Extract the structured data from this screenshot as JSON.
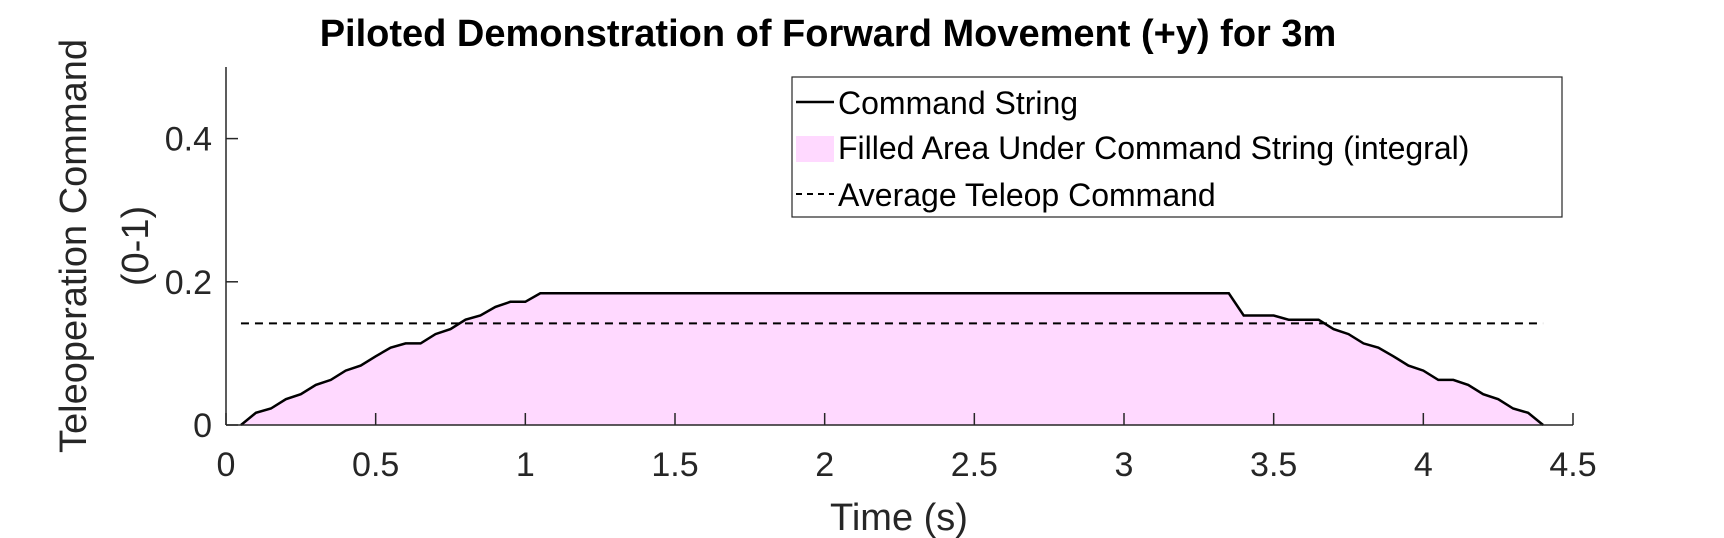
{
  "chart_data": {
    "type": "area",
    "title": "Piloted Demonstration of Forward Movement (+y) for 3m",
    "xlabel": "Time (s)",
    "ylabel_lines": [
      "Teleoperation Command",
      "(0-1)"
    ],
    "xlim": [
      0,
      4.5
    ],
    "ylim": [
      0,
      0.5
    ],
    "xticks": [
      0,
      0.5,
      1,
      1.5,
      2,
      2.5,
      3,
      3.5,
      4,
      4.5
    ],
    "xtick_labels": [
      "0",
      "0.5",
      "1",
      "1.5",
      "2",
      "2.5",
      "3",
      "3.5",
      "4",
      "4.5"
    ],
    "yticks": [
      0,
      0.2,
      0.4
    ],
    "ytick_labels": [
      "0",
      "0.2",
      "0.4"
    ],
    "grid": false,
    "legend_position": "top-right",
    "series": [
      {
        "name": "Command String",
        "style": "solid",
        "color": "#000000",
        "x": [
          0.05,
          0.1,
          0.15,
          0.2,
          0.25,
          0.3,
          0.35,
          0.4,
          0.45,
          0.5,
          0.55,
          0.6,
          0.65,
          0.7,
          0.75,
          0.8,
          0.85,
          0.9,
          0.95,
          1.0,
          1.05,
          3.35,
          3.4,
          3.5,
          3.55,
          3.65,
          3.7,
          3.75,
          3.8,
          3.85,
          3.9,
          3.95,
          4.0,
          4.05,
          4.1,
          4.15,
          4.2,
          4.25,
          4.3,
          4.35,
          4.4
        ],
        "y": [
          0.0,
          0.017,
          0.023,
          0.036,
          0.043,
          0.056,
          0.063,
          0.076,
          0.083,
          0.096,
          0.108,
          0.114,
          0.114,
          0.127,
          0.134,
          0.147,
          0.153,
          0.165,
          0.172,
          0.172,
          0.184,
          0.184,
          0.153,
          0.153,
          0.147,
          0.147,
          0.134,
          0.127,
          0.114,
          0.108,
          0.096,
          0.083,
          0.076,
          0.063,
          0.063,
          0.056,
          0.043,
          0.036,
          0.023,
          0.017,
          0.0
        ]
      },
      {
        "name": "Filled Area Under Command String (integral)",
        "style": "fill",
        "color": "#ffd9ff"
      },
      {
        "name": "Average Teleop Command",
        "style": "dashed",
        "color": "#000000",
        "value": 0.142
      }
    ]
  }
}
